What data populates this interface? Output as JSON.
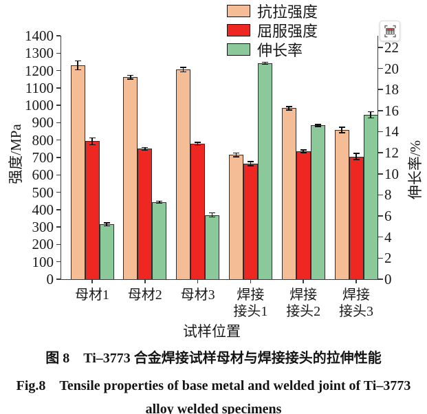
{
  "chart_data": {
    "type": "bar",
    "categories": [
      [
        "母材1"
      ],
      [
        "母材2"
      ],
      [
        "母材3"
      ],
      [
        "焊接",
        "接头1"
      ],
      [
        "焊接",
        "接头2"
      ],
      [
        "焊接",
        "接头3"
      ]
    ],
    "series": [
      {
        "name": "抗拉强度",
        "axis": "left",
        "color": "#F5BD95",
        "values": [
          1230,
          1162,
          1205,
          715,
          983,
          858
        ],
        "errors": [
          25,
          10,
          12,
          10,
          10,
          15
        ]
      },
      {
        "name": "屈服强度",
        "axis": "left",
        "color": "#EE2722",
        "values": [
          793,
          750,
          778,
          665,
          735,
          705
        ],
        "errors": [
          20,
          8,
          8,
          12,
          8,
          18
        ]
      },
      {
        "name": "伸长率",
        "axis": "right",
        "color": "#8CC99A",
        "values": [
          5.2,
          7.3,
          6.1,
          20.5,
          14.6,
          15.6
        ],
        "errors": [
          0.15,
          0.1,
          0.2,
          0.1,
          0.1,
          0.3
        ]
      }
    ],
    "left_axis": {
      "label": "强度/MPa",
      "min": 0,
      "max": 1400,
      "step": 100,
      "range_top": 1400
    },
    "right_axis": {
      "label": "伸长率/%",
      "min": 0,
      "max": 22,
      "step": 2,
      "range_top": 23.1
    },
    "xlabel": "试样位置",
    "grid": false,
    "legend_position": "top-center",
    "bar_border_color": "#2d2d2d",
    "error_bar_color": "#111111"
  },
  "toolbar": {
    "capture_icon": "table-capture-icon"
  },
  "caption": {
    "line1": "图 8　Ti–3773 合金焊接试样母材与焊接接头的拉伸性能",
    "line2": "Fig.8　Tensile properties of base metal and welded joint of Ti–3773",
    "line3": "alloy welded specimens"
  }
}
